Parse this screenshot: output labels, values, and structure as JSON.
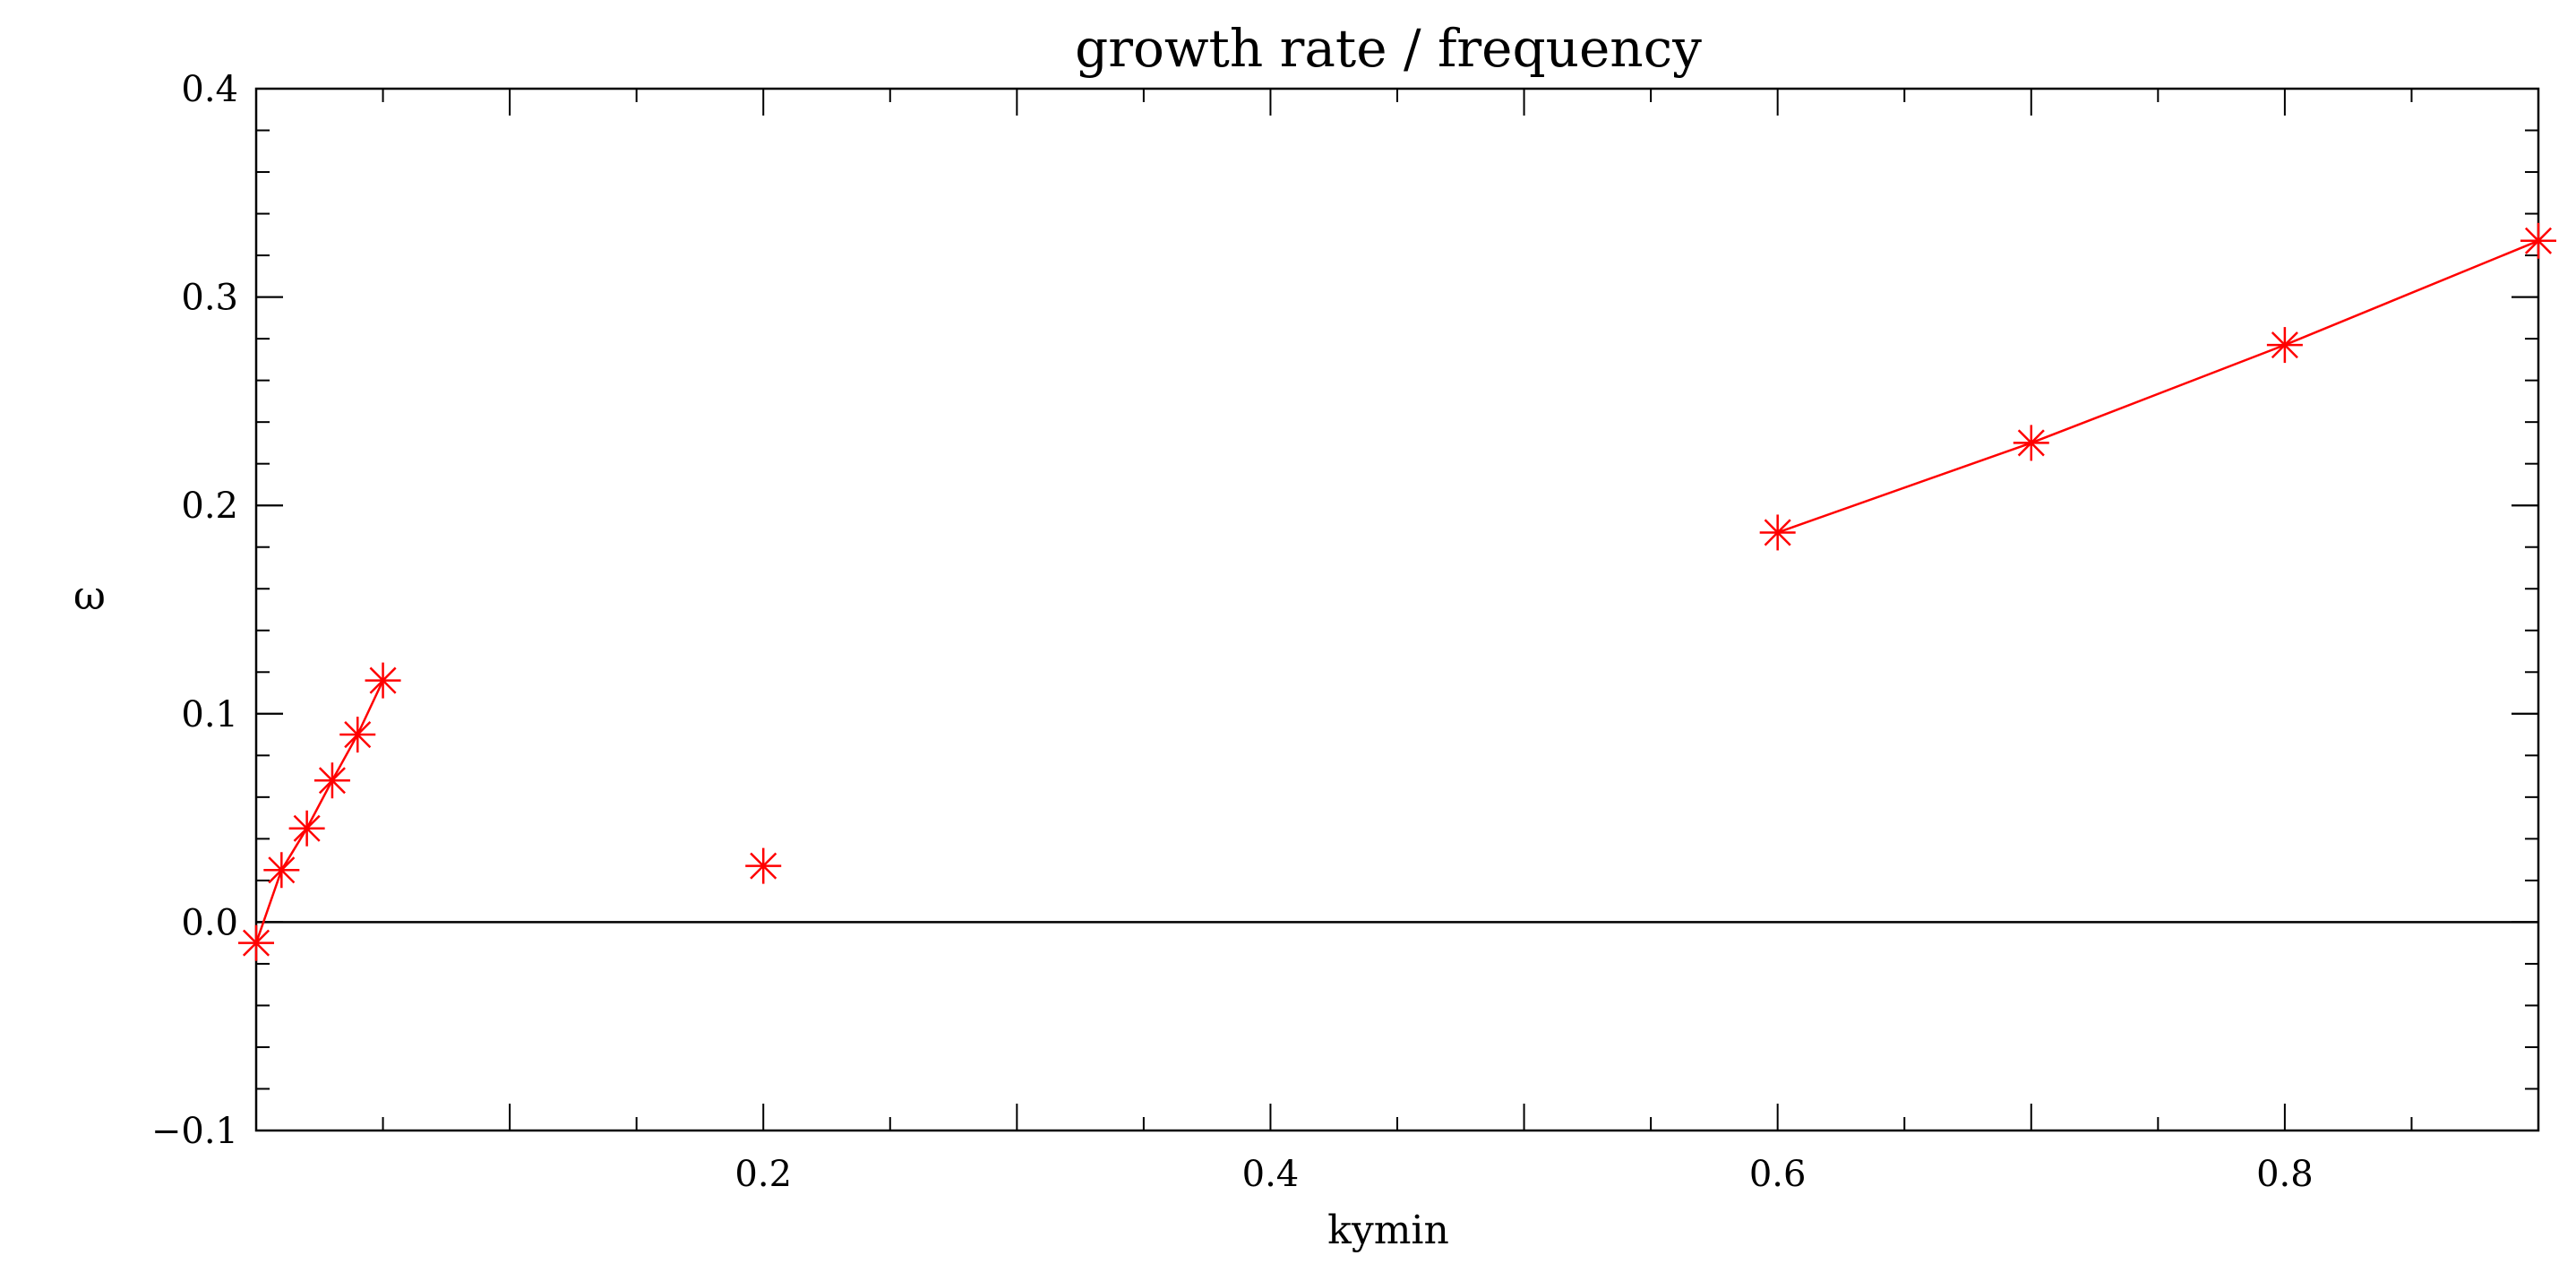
{
  "chart_data": {
    "type": "scatter",
    "title": "growth rate / frequency",
    "xlabel": "kymin",
    "ylabel": "ω",
    "xlim": [
      0.0,
      0.9
    ],
    "ylim": [
      -0.1,
      0.4
    ],
    "x_ticks": [
      {
        "value": 0.2,
        "label": "0.2"
      },
      {
        "value": 0.4,
        "label": "0.4"
      },
      {
        "value": 0.6,
        "label": "0.6"
      },
      {
        "value": 0.8,
        "label": "0.8"
      }
    ],
    "y_ticks": [
      {
        "value": -0.1,
        "label": "−0.1"
      },
      {
        "value": 0.0,
        "label": "0.0"
      },
      {
        "value": 0.1,
        "label": "0.1"
      },
      {
        "value": 0.2,
        "label": "0.2"
      },
      {
        "value": 0.3,
        "label": "0.3"
      },
      {
        "value": 0.4,
        "label": "0.4"
      }
    ],
    "zero_line": 0.0,
    "grid": false,
    "series_color": "#ff0000",
    "segments": [
      {
        "connected": true,
        "x": [
          0.0,
          0.01,
          0.02,
          0.03,
          0.04,
          0.05
        ],
        "y": [
          -0.01,
          0.025,
          0.045,
          0.068,
          0.09,
          0.116
        ]
      },
      {
        "connected": false,
        "x": [
          0.2
        ],
        "y": [
          0.027
        ]
      },
      {
        "connected": true,
        "x": [
          0.6,
          0.7,
          0.8,
          0.9
        ],
        "y": [
          0.187,
          0.23,
          0.277,
          0.327
        ]
      }
    ]
  }
}
